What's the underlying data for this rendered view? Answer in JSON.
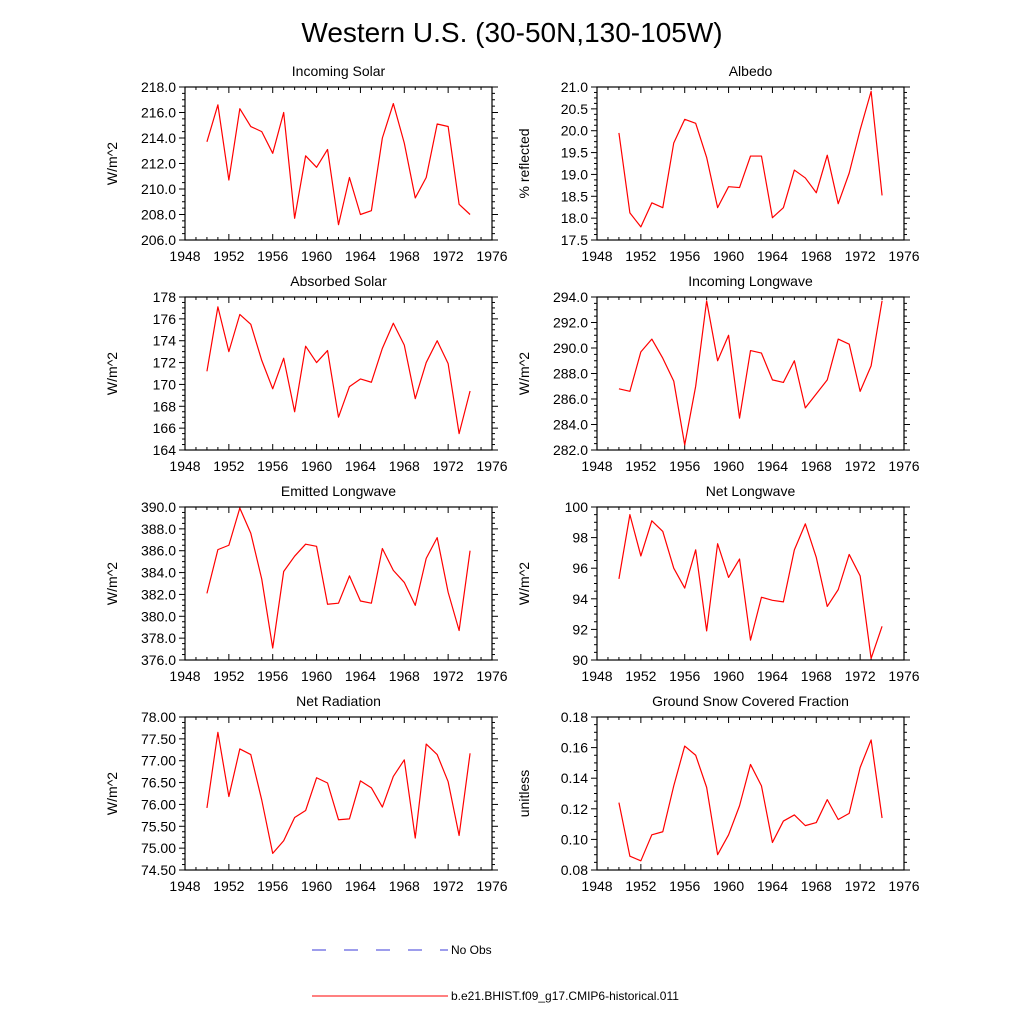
{
  "figure": {
    "title": "Western U.S. (30-50N,130-105W)",
    "legend": {
      "placement": "bottom-center",
      "items": [
        {
          "label": "No Obs",
          "color": "#3b3bd9",
          "dashed": true
        },
        {
          "label": "b.e21.BHIST.f09_g17.CMIP6-historical.011",
          "color": "#ff0000",
          "dashed": false
        }
      ]
    }
  },
  "chart_data": [
    {
      "type": "line",
      "title": "Incoming Solar",
      "ylabel": "W/m^2",
      "xlim": [
        1948,
        1976
      ],
      "ylim": [
        206,
        218
      ],
      "xticks": [
        "1948",
        "1952",
        "1956",
        "1960",
        "1964",
        "1968",
        "1972",
        "1976"
      ],
      "yticks": [
        "206.0",
        "208.0",
        "210.0",
        "212.0",
        "214.0",
        "216.0",
        "218.0"
      ],
      "grid": false,
      "x": [
        1950,
        1951,
        1952,
        1953,
        1954,
        1955,
        1956,
        1957,
        1958,
        1959,
        1960,
        1961,
        1962,
        1963,
        1964,
        1965,
        1966,
        1967,
        1968,
        1969,
        1970,
        1971,
        1972,
        1973,
        1974
      ],
      "series": [
        {
          "name": "b.e21.BHIST.f09_g17.CMIP6-historical.011",
          "color": "#ff0000",
          "values": [
            213.7,
            216.6,
            210.7,
            216.3,
            214.9,
            214.5,
            212.8,
            216.0,
            207.7,
            212.6,
            211.7,
            213.1,
            207.2,
            210.9,
            208.0,
            208.3,
            214.0,
            216.7,
            213.6,
            209.3,
            210.9,
            215.1,
            214.9,
            208.8,
            208.0
          ]
        }
      ]
    },
    {
      "type": "line",
      "title": "Albedo",
      "ylabel": "% reflected",
      "xlim": [
        1948,
        1976
      ],
      "ylim": [
        17.5,
        21.0
      ],
      "xticks": [
        "1948",
        "1952",
        "1956",
        "1960",
        "1964",
        "1968",
        "1972",
        "1976"
      ],
      "yticks": [
        "17.5",
        "18.0",
        "18.5",
        "19.0",
        "19.5",
        "20.0",
        "20.5",
        "21.0"
      ],
      "grid": false,
      "x": [
        1950,
        1951,
        1952,
        1953,
        1954,
        1955,
        1956,
        1957,
        1958,
        1959,
        1960,
        1961,
        1962,
        1963,
        1964,
        1965,
        1966,
        1967,
        1968,
        1969,
        1970,
        1971,
        1972,
        1973,
        1974
      ],
      "series": [
        {
          "name": "b.e21.BHIST.f09_g17.CMIP6-historical.011",
          "color": "#ff0000",
          "values": [
            19.95,
            18.12,
            17.8,
            18.35,
            18.24,
            19.72,
            20.26,
            20.17,
            19.39,
            18.24,
            18.72,
            18.7,
            19.42,
            19.42,
            18.01,
            18.24,
            19.1,
            18.92,
            18.58,
            19.44,
            18.33,
            19.03,
            20.02,
            20.9,
            18.52
          ]
        }
      ]
    },
    {
      "type": "line",
      "title": "Absorbed Solar",
      "ylabel": "W/m^2",
      "xlim": [
        1948,
        1976
      ],
      "ylim": [
        164,
        178
      ],
      "xticks": [
        "1948",
        "1952",
        "1956",
        "1960",
        "1964",
        "1968",
        "1972",
        "1976"
      ],
      "yticks": [
        "164",
        "166",
        "168",
        "170",
        "172",
        "174",
        "176",
        "178"
      ],
      "grid": false,
      "x": [
        1950,
        1951,
        1952,
        1953,
        1954,
        1955,
        1956,
        1957,
        1958,
        1959,
        1960,
        1961,
        1962,
        1963,
        1964,
        1965,
        1966,
        1967,
        1968,
        1969,
        1970,
        1971,
        1972,
        1973,
        1974
      ],
      "series": [
        {
          "name": "b.e21.BHIST.f09_g17.CMIP6-historical.011",
          "color": "#ff0000",
          "values": [
            171.2,
            177.1,
            173.0,
            176.4,
            175.5,
            172.2,
            169.6,
            172.4,
            167.5,
            173.5,
            172.0,
            173.1,
            167.0,
            169.8,
            170.5,
            170.2,
            173.3,
            175.6,
            173.6,
            168.7,
            172.0,
            174.0,
            171.9,
            165.5,
            169.4
          ]
        }
      ]
    },
    {
      "type": "line",
      "title": "Incoming Longwave",
      "ylabel": "W/m^2",
      "xlim": [
        1948,
        1976
      ],
      "ylim": [
        282,
        294
      ],
      "xticks": [
        "1948",
        "1952",
        "1956",
        "1960",
        "1964",
        "1968",
        "1972",
        "1976"
      ],
      "yticks": [
        "282.0",
        "284.0",
        "286.0",
        "288.0",
        "290.0",
        "292.0",
        "294.0"
      ],
      "grid": false,
      "x": [
        1950,
        1951,
        1952,
        1953,
        1954,
        1955,
        1956,
        1957,
        1958,
        1959,
        1960,
        1961,
        1962,
        1963,
        1964,
        1965,
        1966,
        1967,
        1968,
        1969,
        1970,
        1971,
        1972,
        1973,
        1974
      ],
      "series": [
        {
          "name": "b.e21.BHIST.f09_g17.CMIP6-historical.011",
          "color": "#ff0000",
          "values": [
            286.8,
            286.6,
            289.7,
            290.7,
            289.2,
            287.4,
            282.4,
            287.0,
            293.7,
            289.0,
            291.0,
            284.5,
            289.8,
            289.6,
            287.5,
            287.3,
            289.0,
            285.3,
            286.4,
            287.5,
            290.7,
            290.3,
            286.6,
            288.6,
            293.7
          ]
        }
      ]
    },
    {
      "type": "line",
      "title": "Emitted Longwave",
      "ylabel": "W/m^2",
      "xlim": [
        1948,
        1976
      ],
      "ylim": [
        376,
        390
      ],
      "xticks": [
        "1948",
        "1952",
        "1956",
        "1960",
        "1964",
        "1968",
        "1972",
        "1976"
      ],
      "yticks": [
        "376.0",
        "378.0",
        "380.0",
        "382.0",
        "384.0",
        "386.0",
        "388.0",
        "390.0"
      ],
      "grid": false,
      "x": [
        1950,
        1951,
        1952,
        1953,
        1954,
        1955,
        1956,
        1957,
        1958,
        1959,
        1960,
        1961,
        1962,
        1963,
        1964,
        1965,
        1966,
        1967,
        1968,
        1969,
        1970,
        1971,
        1972,
        1973,
        1974
      ],
      "series": [
        {
          "name": "b.e21.BHIST.f09_g17.CMIP6-historical.011",
          "color": "#ff0000",
          "values": [
            382.1,
            386.1,
            386.5,
            389.9,
            387.6,
            383.4,
            377.1,
            384.1,
            385.5,
            386.6,
            386.4,
            381.1,
            381.2,
            383.7,
            381.4,
            381.2,
            386.2,
            384.2,
            383.1,
            381.0,
            385.3,
            387.2,
            382.2,
            378.7,
            386.0
          ]
        }
      ]
    },
    {
      "type": "line",
      "title": "Net Longwave",
      "ylabel": "W/m^2",
      "xlim": [
        1948,
        1976
      ],
      "ylim": [
        90,
        100
      ],
      "xticks": [
        "1948",
        "1952",
        "1956",
        "1960",
        "1964",
        "1968",
        "1972",
        "1976"
      ],
      "yticks": [
        "90",
        "92",
        "94",
        "96",
        "98",
        "100"
      ],
      "grid": false,
      "x": [
        1950,
        1951,
        1952,
        1953,
        1954,
        1955,
        1956,
        1957,
        1958,
        1959,
        1960,
        1961,
        1962,
        1963,
        1964,
        1965,
        1966,
        1967,
        1968,
        1969,
        1970,
        1971,
        1972,
        1973,
        1974
      ],
      "series": [
        {
          "name": "b.e21.BHIST.f09_g17.CMIP6-historical.011",
          "color": "#ff0000",
          "values": [
            95.3,
            99.5,
            96.8,
            99.1,
            98.4,
            96.0,
            94.7,
            97.2,
            91.9,
            97.6,
            95.4,
            96.6,
            91.3,
            94.1,
            93.9,
            93.8,
            97.2,
            98.9,
            96.7,
            93.5,
            94.6,
            96.9,
            95.5,
            90.1,
            92.2
          ]
        }
      ]
    },
    {
      "type": "line",
      "title": "Net Radiation",
      "ylabel": "W/m^2",
      "xlim": [
        1948,
        1976
      ],
      "ylim": [
        74.5,
        78.0
      ],
      "xticks": [
        "1948",
        "1952",
        "1956",
        "1960",
        "1964",
        "1968",
        "1972",
        "1976"
      ],
      "yticks": [
        "74.50",
        "75.00",
        "75.50",
        "76.00",
        "76.50",
        "77.00",
        "77.50",
        "78.00"
      ],
      "grid": false,
      "x": [
        1950,
        1951,
        1952,
        1953,
        1954,
        1955,
        1956,
        1957,
        1958,
        1959,
        1960,
        1961,
        1962,
        1963,
        1964,
        1965,
        1966,
        1967,
        1968,
        1969,
        1970,
        1971,
        1972,
        1973,
        1974
      ],
      "series": [
        {
          "name": "b.e21.BHIST.f09_g17.CMIP6-historical.011",
          "color": "#ff0000",
          "values": [
            75.92,
            77.65,
            76.18,
            77.27,
            77.14,
            76.1,
            74.88,
            75.17,
            75.7,
            75.86,
            76.61,
            76.49,
            75.65,
            75.67,
            76.54,
            76.38,
            75.94,
            76.64,
            77.02,
            75.23,
            77.38,
            77.14,
            76.52,
            75.29,
            77.17
          ]
        }
      ]
    },
    {
      "type": "line",
      "title": "Ground Snow Covered Fraction",
      "ylabel": "unitless",
      "xlim": [
        1948,
        1976
      ],
      "ylim": [
        0.08,
        0.18
      ],
      "xticks": [
        "1948",
        "1952",
        "1956",
        "1960",
        "1964",
        "1968",
        "1972",
        "1976"
      ],
      "yticks": [
        "0.08",
        "0.10",
        "0.12",
        "0.14",
        "0.16",
        "0.18"
      ],
      "grid": false,
      "x": [
        1950,
        1951,
        1952,
        1953,
        1954,
        1955,
        1956,
        1957,
        1958,
        1959,
        1960,
        1961,
        1962,
        1963,
        1964,
        1965,
        1966,
        1967,
        1968,
        1969,
        1970,
        1971,
        1972,
        1973,
        1974
      ],
      "series": [
        {
          "name": "b.e21.BHIST.f09_g17.CMIP6-historical.011",
          "color": "#ff0000",
          "values": [
            0.124,
            0.089,
            0.086,
            0.103,
            0.105,
            0.135,
            0.161,
            0.155,
            0.134,
            0.09,
            0.103,
            0.122,
            0.149,
            0.135,
            0.098,
            0.112,
            0.116,
            0.109,
            0.111,
            0.126,
            0.113,
            0.117,
            0.147,
            0.165,
            0.114
          ]
        }
      ]
    }
  ]
}
